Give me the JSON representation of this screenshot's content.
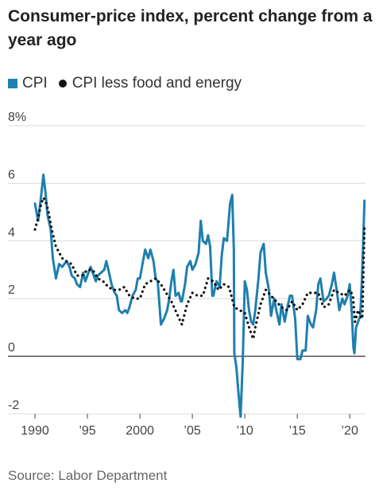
{
  "header": {
    "title": "Consumer-price index, percent change from a year ago"
  },
  "legend": {
    "items": [
      {
        "label": "CPI",
        "color": "#1f7fae",
        "marker": "square"
      },
      {
        "label": "CPI less food and energy",
        "color": "#111111",
        "marker": "dot"
      }
    ]
  },
  "footer": {
    "source": "Source: Labor Department"
  },
  "chart_data": {
    "type": "line",
    "title": "Consumer-price index, percent change from a year ago",
    "xlabel": "",
    "ylabel": "",
    "xlim": [
      1990,
      2021.5
    ],
    "ylim": [
      -2,
      8
    ],
    "yticks": [
      -2,
      0,
      2,
      4,
      6,
      8
    ],
    "ytick_labels": [
      "-2",
      "0",
      "2",
      "4",
      "6",
      "8%"
    ],
    "xticks": [
      1990,
      1995,
      2000,
      2005,
      2010,
      2015,
      2020
    ],
    "xtick_labels": [
      "1990",
      "’95",
      "2000",
      "’05",
      "’10",
      "’15",
      "’20"
    ],
    "grid": "horizontal",
    "legend_position": "top-left",
    "series": [
      {
        "name": "CPI",
        "style": "solid",
        "color": "#1f7fae",
        "points": [
          [
            1990.0,
            5.3
          ],
          [
            1990.3,
            4.7
          ],
          [
            1990.6,
            5.6
          ],
          [
            1990.8,
            6.3
          ],
          [
            1991.0,
            5.7
          ],
          [
            1991.2,
            4.9
          ],
          [
            1991.5,
            4.4
          ],
          [
            1991.7,
            3.4
          ],
          [
            1992.0,
            2.7
          ],
          [
            1992.3,
            3.2
          ],
          [
            1992.6,
            3.1
          ],
          [
            1992.8,
            3.2
          ],
          [
            1993.0,
            3.3
          ],
          [
            1993.3,
            3.1
          ],
          [
            1993.5,
            2.8
          ],
          [
            1993.8,
            2.7
          ],
          [
            1994.0,
            2.5
          ],
          [
            1994.3,
            2.4
          ],
          [
            1994.6,
            2.9
          ],
          [
            1994.8,
            2.6
          ],
          [
            1995.0,
            2.8
          ],
          [
            1995.3,
            3.1
          ],
          [
            1995.6,
            2.8
          ],
          [
            1995.8,
            2.6
          ],
          [
            1996.0,
            2.8
          ],
          [
            1996.3,
            2.9
          ],
          [
            1996.6,
            3.0
          ],
          [
            1996.8,
            3.3
          ],
          [
            1997.0,
            3.0
          ],
          [
            1997.3,
            2.5
          ],
          [
            1997.6,
            2.2
          ],
          [
            1997.8,
            2.1
          ],
          [
            1998.0,
            1.6
          ],
          [
            1998.3,
            1.5
          ],
          [
            1998.6,
            1.6
          ],
          [
            1998.8,
            1.5
          ],
          [
            1999.0,
            1.7
          ],
          [
            1999.3,
            2.1
          ],
          [
            1999.6,
            2.3
          ],
          [
            1999.8,
            2.7
          ],
          [
            2000.0,
            2.7
          ],
          [
            2000.3,
            3.3
          ],
          [
            2000.5,
            3.7
          ],
          [
            2000.8,
            3.4
          ],
          [
            2001.0,
            3.7
          ],
          [
            2001.3,
            3.3
          ],
          [
            2001.5,
            2.7
          ],
          [
            2001.7,
            2.6
          ],
          [
            2001.9,
            1.6
          ],
          [
            2002.0,
            1.1
          ],
          [
            2002.3,
            1.3
          ],
          [
            2002.6,
            1.6
          ],
          [
            2002.8,
            2.0
          ],
          [
            2003.0,
            2.6
          ],
          [
            2003.2,
            3.0
          ],
          [
            2003.4,
            2.1
          ],
          [
            2003.7,
            2.2
          ],
          [
            2003.9,
            1.9
          ],
          [
            2004.0,
            1.9
          ],
          [
            2004.3,
            2.5
          ],
          [
            2004.5,
            3.1
          ],
          [
            2004.8,
            3.3
          ],
          [
            2005.0,
            3.0
          ],
          [
            2005.3,
            3.2
          ],
          [
            2005.6,
            3.6
          ],
          [
            2005.8,
            4.7
          ],
          [
            2006.0,
            4.0
          ],
          [
            2006.3,
            3.9
          ],
          [
            2006.5,
            4.2
          ],
          [
            2006.7,
            3.8
          ],
          [
            2006.9,
            2.1
          ],
          [
            2007.0,
            2.1
          ],
          [
            2007.3,
            2.6
          ],
          [
            2007.6,
            2.4
          ],
          [
            2007.8,
            3.5
          ],
          [
            2008.0,
            4.1
          ],
          [
            2008.3,
            4.0
          ],
          [
            2008.6,
            5.3
          ],
          [
            2008.8,
            5.6
          ],
          [
            2008.95,
            3.7
          ],
          [
            2009.0,
            0.1
          ],
          [
            2009.2,
            -0.4
          ],
          [
            2009.4,
            -1.3
          ],
          [
            2009.6,
            -2.1
          ],
          [
            2009.8,
            -0.2
          ],
          [
            2010.0,
            2.6
          ],
          [
            2010.2,
            2.3
          ],
          [
            2010.4,
            1.6
          ],
          [
            2010.6,
            1.2
          ],
          [
            2010.8,
            1.1
          ],
          [
            2011.0,
            1.6
          ],
          [
            2011.3,
            2.7
          ],
          [
            2011.5,
            3.6
          ],
          [
            2011.8,
            3.9
          ],
          [
            2012.0,
            2.9
          ],
          [
            2012.3,
            2.3
          ],
          [
            2012.5,
            1.4
          ],
          [
            2012.8,
            2.0
          ],
          [
            2013.0,
            1.6
          ],
          [
            2013.3,
            1.1
          ],
          [
            2013.5,
            1.8
          ],
          [
            2013.8,
            1.2
          ],
          [
            2014.0,
            1.6
          ],
          [
            2014.3,
            2.1
          ],
          [
            2014.5,
            2.1
          ],
          [
            2014.8,
            1.3
          ],
          [
            2015.0,
            -0.1
          ],
          [
            2015.3,
            -0.1
          ],
          [
            2015.5,
            0.2
          ],
          [
            2015.8,
            0.2
          ],
          [
            2016.0,
            1.4
          ],
          [
            2016.3,
            1.1
          ],
          [
            2016.5,
            1.0
          ],
          [
            2016.8,
            1.6
          ],
          [
            2017.0,
            2.5
          ],
          [
            2017.2,
            2.7
          ],
          [
            2017.5,
            1.9
          ],
          [
            2017.8,
            2.0
          ],
          [
            2018.0,
            2.1
          ],
          [
            2018.3,
            2.5
          ],
          [
            2018.5,
            2.9
          ],
          [
            2018.8,
            2.2
          ],
          [
            2019.0,
            1.6
          ],
          [
            2019.3,
            2.0
          ],
          [
            2019.5,
            1.8
          ],
          [
            2019.8,
            2.1
          ],
          [
            2020.0,
            2.5
          ],
          [
            2020.2,
            1.5
          ],
          [
            2020.35,
            0.3
          ],
          [
            2020.45,
            0.1
          ],
          [
            2020.6,
            1.0
          ],
          [
            2020.8,
            1.2
          ],
          [
            2021.0,
            1.4
          ],
          [
            2021.15,
            2.6
          ],
          [
            2021.3,
            4.2
          ],
          [
            2021.4,
            5.4
          ]
        ]
      },
      {
        "name": "CPI less food and energy",
        "style": "dotted",
        "color": "#111111",
        "points": [
          [
            1990.0,
            4.4
          ],
          [
            1990.3,
            4.8
          ],
          [
            1990.6,
            5.3
          ],
          [
            1990.8,
            5.5
          ],
          [
            1991.0,
            5.4
          ],
          [
            1991.3,
            5.0
          ],
          [
            1991.6,
            4.4
          ],
          [
            1992.0,
            3.8
          ],
          [
            1992.3,
            3.6
          ],
          [
            1992.6,
            3.4
          ],
          [
            1993.0,
            3.3
          ],
          [
            1993.5,
            3.2
          ],
          [
            1994.0,
            2.8
          ],
          [
            1994.5,
            2.8
          ],
          [
            1995.0,
            3.0
          ],
          [
            1995.5,
            3.0
          ],
          [
            1996.0,
            2.7
          ],
          [
            1996.5,
            2.6
          ],
          [
            1997.0,
            2.4
          ],
          [
            1997.5,
            2.3
          ],
          [
            1998.0,
            2.3
          ],
          [
            1998.5,
            2.4
          ],
          [
            1999.0,
            2.1
          ],
          [
            1999.5,
            2.0
          ],
          [
            2000.0,
            2.0
          ],
          [
            2000.5,
            2.5
          ],
          [
            2001.0,
            2.6
          ],
          [
            2001.5,
            2.7
          ],
          [
            2002.0,
            2.5
          ],
          [
            2002.5,
            2.2
          ],
          [
            2003.0,
            1.9
          ],
          [
            2003.5,
            1.5
          ],
          [
            2004.0,
            1.1
          ],
          [
            2004.5,
            1.8
          ],
          [
            2005.0,
            2.2
          ],
          [
            2005.5,
            2.1
          ],
          [
            2006.0,
            2.1
          ],
          [
            2006.5,
            2.7
          ],
          [
            2007.0,
            2.6
          ],
          [
            2007.5,
            2.3
          ],
          [
            2008.0,
            2.5
          ],
          [
            2008.5,
            2.4
          ],
          [
            2009.0,
            1.7
          ],
          [
            2009.5,
            1.6
          ],
          [
            2010.0,
            1.5
          ],
          [
            2010.5,
            0.9
          ],
          [
            2010.8,
            0.6
          ],
          [
            2011.0,
            1.0
          ],
          [
            2011.5,
            1.8
          ],
          [
            2012.0,
            2.3
          ],
          [
            2012.5,
            2.1
          ],
          [
            2013.0,
            1.9
          ],
          [
            2013.5,
            1.7
          ],
          [
            2014.0,
            1.6
          ],
          [
            2014.5,
            1.9
          ],
          [
            2015.0,
            1.6
          ],
          [
            2015.5,
            1.8
          ],
          [
            2016.0,
            2.2
          ],
          [
            2016.5,
            2.2
          ],
          [
            2017.0,
            2.2
          ],
          [
            2017.5,
            1.7
          ],
          [
            2018.0,
            1.8
          ],
          [
            2018.5,
            2.3
          ],
          [
            2019.0,
            2.2
          ],
          [
            2019.5,
            2.1
          ],
          [
            2020.0,
            2.3
          ],
          [
            2020.3,
            2.1
          ],
          [
            2020.5,
            1.2
          ],
          [
            2020.8,
            1.6
          ],
          [
            2021.0,
            1.4
          ],
          [
            2021.2,
            1.3
          ],
          [
            2021.3,
            3.0
          ],
          [
            2021.4,
            4.5
          ]
        ]
      }
    ]
  }
}
